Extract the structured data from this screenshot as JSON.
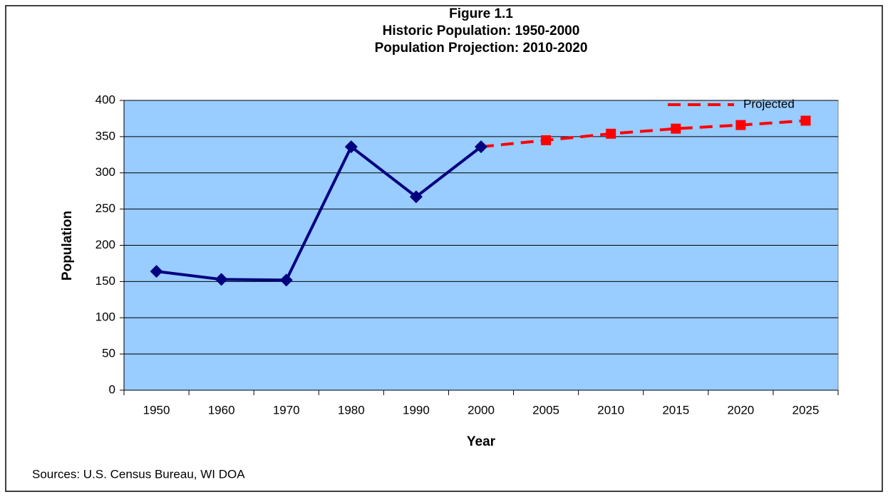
{
  "chart_data": {
    "type": "line",
    "title": [
      "Figure 1.1",
      "Historic Population: 1950-2000",
      "Population Projection: 2010-2020"
    ],
    "x_label": "Year",
    "y_label": "Population",
    "note": "Sources: U.S. Census Bureau, WI DOA",
    "categories": [
      "1950",
      "1960",
      "1970",
      "1980",
      "1990",
      "2000",
      "2005",
      "2010",
      "2015",
      "2020",
      "2025"
    ],
    "series": [
      {
        "color": "#000080",
        "marker": "diamond",
        "dashed": false,
        "values": [
          164,
          153,
          152,
          336,
          267,
          336,
          null,
          null,
          null,
          null,
          null
        ]
      },
      {
        "name": "Projected",
        "color": "#ff0000",
        "marker": "square",
        "dashed": true,
        "values": [
          null,
          null,
          null,
          null,
          null,
          336,
          345,
          354,
          361,
          366,
          372
        ]
      }
    ],
    "ylim": [
      0,
      400
    ],
    "yticks": [
      0,
      50,
      100,
      150,
      200,
      250,
      300,
      350,
      400
    ],
    "grid": true,
    "legend": "top-right",
    "plot_background": "#99ccff"
  }
}
